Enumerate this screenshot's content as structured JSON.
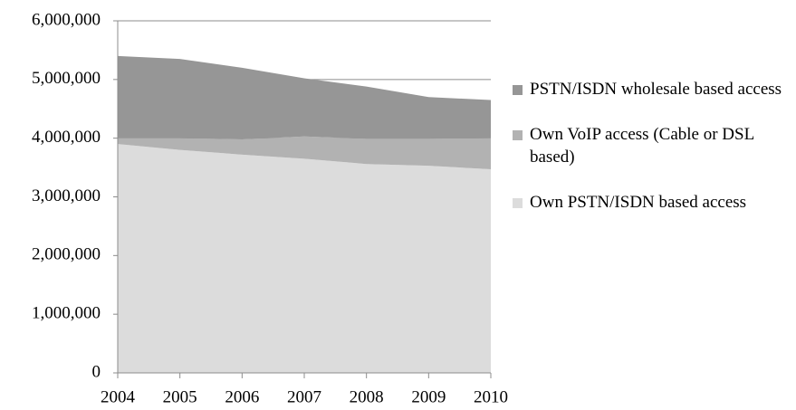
{
  "chart_data": {
    "type": "stacked_area",
    "x": [
      2004,
      2005,
      2006,
      2007,
      2008,
      2009,
      2010
    ],
    "series": [
      {
        "name": "PSTN/ISDN wholesale based access",
        "color": "#969696",
        "values": [
          1400000,
          1350000,
          1220000,
          990000,
          890000,
          710000,
          650000
        ]
      },
      {
        "name": "Own VoIP access (Cable or DSL based)",
        "color": "#b2b2b2",
        "values": [
          100000,
          200000,
          260000,
          380000,
          430000,
          460000,
          530000
        ]
      },
      {
        "name": "Own PSTN/ISDN based access",
        "color": "#dcdcdc",
        "values": [
          3900000,
          3800000,
          3720000,
          3650000,
          3560000,
          3530000,
          3470000
        ]
      }
    ],
    "xlim": [
      2004,
      2010
    ],
    "xticks": [
      2004,
      2005,
      2006,
      2007,
      2008,
      2009,
      2010
    ],
    "ylim": [
      0,
      6000000
    ],
    "yticks": [
      0,
      {
        "value": 1000000,
        "label": "1,000,000"
      },
      {
        "value": 2000000,
        "label": "2,000,000"
      },
      {
        "value": 3000000,
        "label": "3,000,000"
      },
      {
        "value": 4000000,
        "label": "4,000,000"
      },
      {
        "value": 5000000,
        "label": "5,000,000"
      },
      {
        "value": 6000000,
        "label": "6,000,000"
      }
    ],
    "grid": true,
    "legend": "right"
  }
}
